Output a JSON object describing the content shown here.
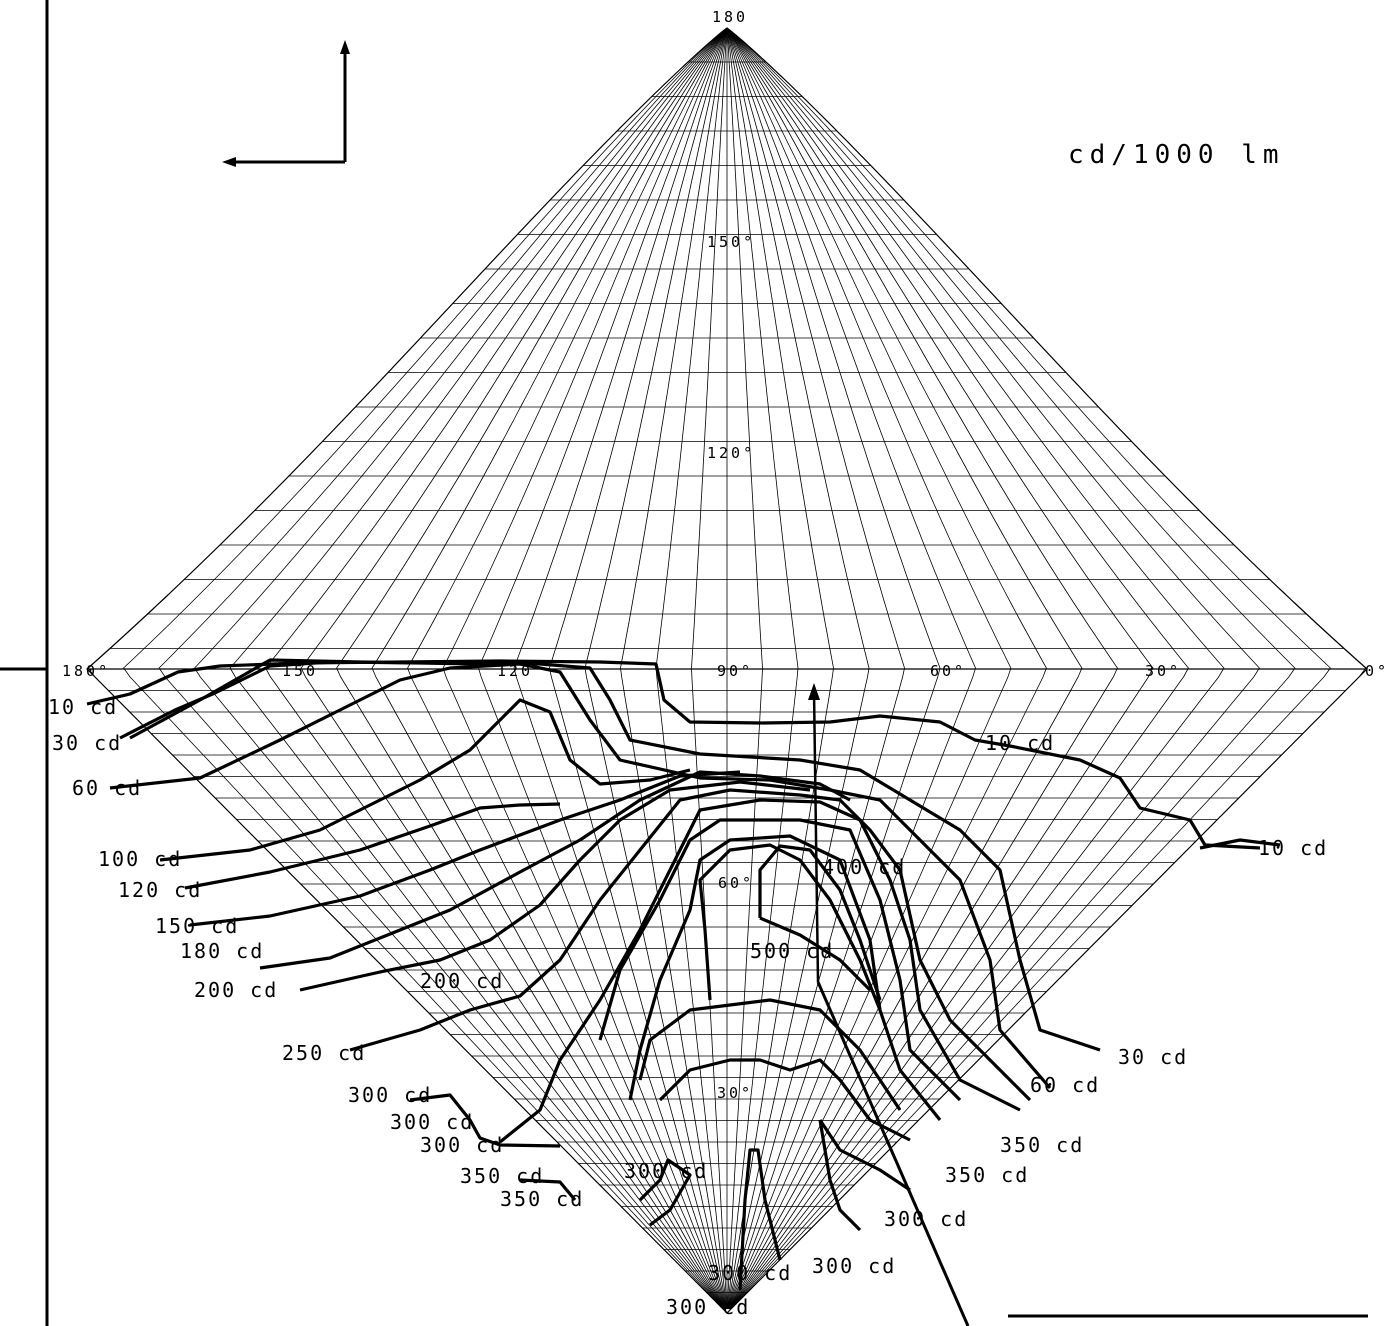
{
  "chart_data": {
    "type": "isocandela diagram",
    "unit_label": "cd/1000 lm",
    "axes": {
      "top_tick": "180",
      "vertical_ticks": [
        "150°",
        "120°",
        "60°",
        "30°"
      ],
      "horizontal_ticks": [
        "180°",
        "150",
        "120",
        "90°",
        "60°",
        "30°",
        "0°"
      ]
    },
    "contour_levels_cd": [
      10,
      30,
      60,
      100,
      120,
      150,
      180,
      200,
      250,
      300,
      350,
      400,
      500
    ],
    "contour_labels": [
      "10 cd",
      "30 cd",
      "60 cd",
      "100 cd",
      "120 cd",
      "150 cd",
      "180 cd",
      "200 cd",
      "200 cd",
      "250 cd",
      "300 cd",
      "300 cd",
      "300 cd",
      "350 cd",
      "350 cd",
      "400 cd",
      "500 cd",
      "10 cd",
      "10 cd",
      "30 cd",
      "60 cd",
      "350 cd",
      "350 cd",
      "300 cd",
      "300 cd",
      "300 cd",
      "300 cd",
      "300 cd"
    ],
    "colors": {
      "ink": "#000000",
      "background": "#ffffff"
    }
  }
}
